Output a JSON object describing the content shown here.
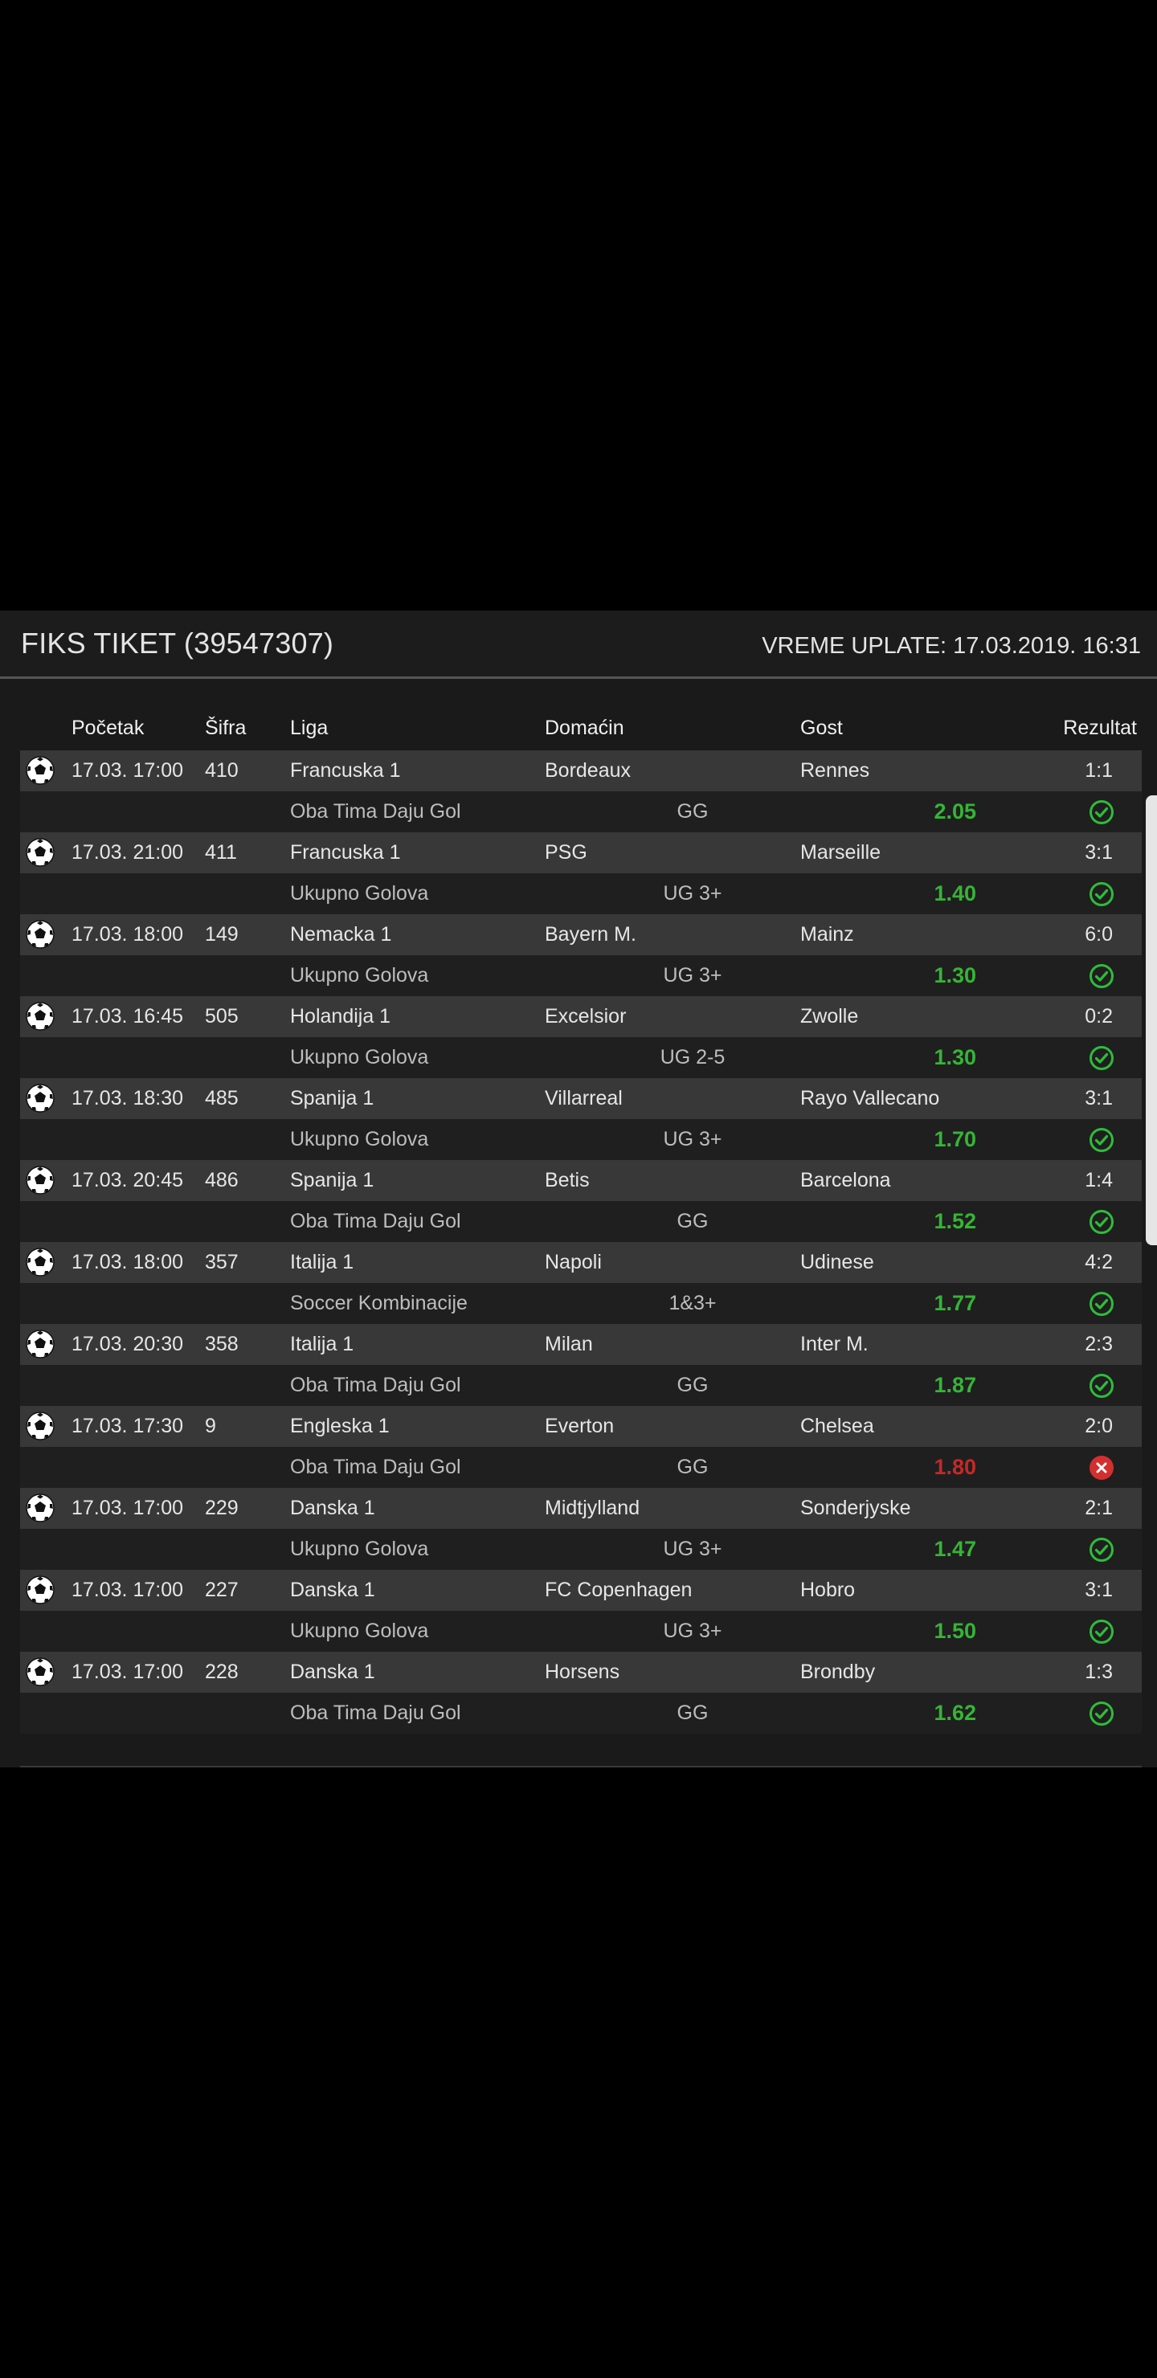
{
  "ticket": {
    "title": "FIKS TIKET (39547307)",
    "payment_time": "VREME UPLATE: 17.03.2019. 16:31"
  },
  "columns": {
    "start": "Početak",
    "code": "Šifra",
    "league": "Liga",
    "home": "Domaćin",
    "away": "Gost",
    "result": "Rezultat"
  },
  "colors": {
    "odds_win": "#35b535",
    "odds_lose": "#c62828",
    "status_win": "#2ebd3a",
    "status_lose": "#d32f2f"
  },
  "matches": [
    {
      "time": "17.03. 17:00",
      "code": "410",
      "league": "Francuska 1",
      "home": "Bordeaux",
      "away": "Rennes",
      "result": "1:1",
      "bet_type": "Oba Tima Daju Gol",
      "pick": "GG",
      "odds": "2.05",
      "status": "win"
    },
    {
      "time": "17.03. 21:00",
      "code": "411",
      "league": "Francuska 1",
      "home": "PSG",
      "away": "Marseille",
      "result": "3:1",
      "bet_type": "Ukupno Golova",
      "pick": "UG 3+",
      "odds": "1.40",
      "status": "win"
    },
    {
      "time": "17.03. 18:00",
      "code": "149",
      "league": "Nemacka 1",
      "home": "Bayern M.",
      "away": "Mainz",
      "result": "6:0",
      "bet_type": "Ukupno Golova",
      "pick": "UG 3+",
      "odds": "1.30",
      "status": "win"
    },
    {
      "time": "17.03. 16:45",
      "code": "505",
      "league": "Holandija 1",
      "home": "Excelsior",
      "away": "Zwolle",
      "result": "0:2",
      "bet_type": "Ukupno Golova",
      "pick": "UG 2-5",
      "odds": "1.30",
      "status": "win"
    },
    {
      "time": "17.03. 18:30",
      "code": "485",
      "league": "Spanija 1",
      "home": "Villarreal",
      "away": "Rayo Vallecano",
      "result": "3:1",
      "bet_type": "Ukupno Golova",
      "pick": "UG 3+",
      "odds": "1.70",
      "status": "win"
    },
    {
      "time": "17.03. 20:45",
      "code": "486",
      "league": "Spanija 1",
      "home": "Betis",
      "away": "Barcelona",
      "result": "1:4",
      "bet_type": "Oba Tima Daju Gol",
      "pick": "GG",
      "odds": "1.52",
      "status": "win"
    },
    {
      "time": "17.03. 18:00",
      "code": "357",
      "league": "Italija 1",
      "home": "Napoli",
      "away": "Udinese",
      "result": "4:2",
      "bet_type": "Soccer Kombinacije",
      "pick": "1&3+",
      "odds": "1.77",
      "status": "win"
    },
    {
      "time": "17.03. 20:30",
      "code": "358",
      "league": "Italija 1",
      "home": "Milan",
      "away": "Inter M.",
      "result": "2:3",
      "bet_type": "Oba Tima Daju Gol",
      "pick": "GG",
      "odds": "1.87",
      "status": "win"
    },
    {
      "time": "17.03. 17:30",
      "code": "9",
      "league": "Engleska 1",
      "home": "Everton",
      "away": "Chelsea",
      "result": "2:0",
      "bet_type": "Oba Tima Daju Gol",
      "pick": "GG",
      "odds": "1.80",
      "status": "lose"
    },
    {
      "time": "17.03. 17:00",
      "code": "229",
      "league": "Danska 1",
      "home": "Midtjylland",
      "away": "Sonderjyske",
      "result": "2:1",
      "bet_type": "Ukupno Golova",
      "pick": "UG 3+",
      "odds": "1.47",
      "status": "win"
    },
    {
      "time": "17.03. 17:00",
      "code": "227",
      "league": "Danska 1",
      "home": "FC Copenhagen",
      "away": "Hobro",
      "result": "3:1",
      "bet_type": "Ukupno Golova",
      "pick": "UG 3+",
      "odds": "1.50",
      "status": "win"
    },
    {
      "time": "17.03. 17:00",
      "code": "228",
      "league": "Danska 1",
      "home": "Horsens",
      "away": "Brondby",
      "result": "1:3",
      "bet_type": "Oba Tima Daju Gol",
      "pick": "GG",
      "odds": "1.62",
      "status": "win"
    }
  ]
}
